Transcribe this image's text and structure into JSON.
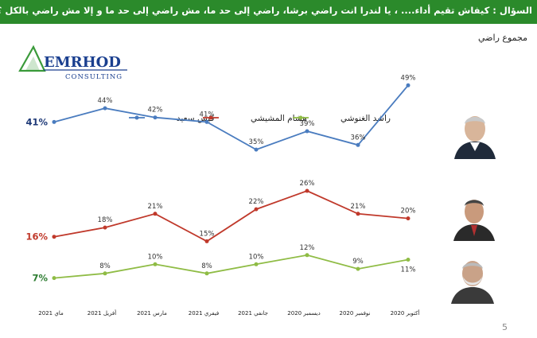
{
  "header": {
    "question": "السؤال : كيفاش تقيم أداء.... ، يا لندرا انت راضي برشا، راضي إلى حد ما، مش راضي إلى حد ما و إلا مش راضي بالكل ؟"
  },
  "subtitle": "مجموع راضي",
  "logo": {
    "name": "EMRHOD",
    "tagline": "CONSULTING",
    "color": "#1a3f8f",
    "accent": "#3a9a3a"
  },
  "page_number": "5",
  "colors": {
    "header_bg": "#2b8a2b",
    "series_blue": "#4a7cbf",
    "series_red": "#c0392b",
    "series_green": "#8fbc45"
  },
  "chart_data": {
    "type": "line",
    "categories": [
      "ماي 2021",
      "أفريل 2021",
      "مارس 2021",
      "فيفري 2021",
      "جانفي 2021",
      "ديسمبر 2020",
      "نوفمبر 2020",
      "أكتوبر 2020"
    ],
    "series": [
      {
        "name": "قيس سعيد",
        "color": "#4a7cbf",
        "values": [
          41,
          44,
          42,
          41,
          35,
          39,
          36,
          49
        ],
        "labels": [
          "41%",
          "44%",
          "42%",
          "41%",
          "35%",
          "39%",
          "36%",
          "49%"
        ]
      },
      {
        "name": "هشام المشيشي",
        "color": "#c0392b",
        "values": [
          16,
          18,
          21,
          15,
          22,
          26,
          21,
          20
        ],
        "labels": [
          "16%",
          "18%",
          "21%",
          "15%",
          "22%",
          "26%",
          "21%",
          "20%"
        ]
      },
      {
        "name": "راشد الغنوشي",
        "color": "#8fbc45",
        "values": [
          7,
          8,
          10,
          8,
          10,
          12,
          9,
          11
        ],
        "labels": [
          "7%",
          "8%",
          "10%",
          "8%",
          "10%",
          "12%",
          "9%",
          "11%"
        ]
      }
    ],
    "legend_position": "top",
    "grid": false
  },
  "portraits": [
    {
      "person": "قيس سعيد"
    },
    {
      "person": "هشام المشيشي"
    },
    {
      "person": "راشد الغنوشي"
    }
  ]
}
